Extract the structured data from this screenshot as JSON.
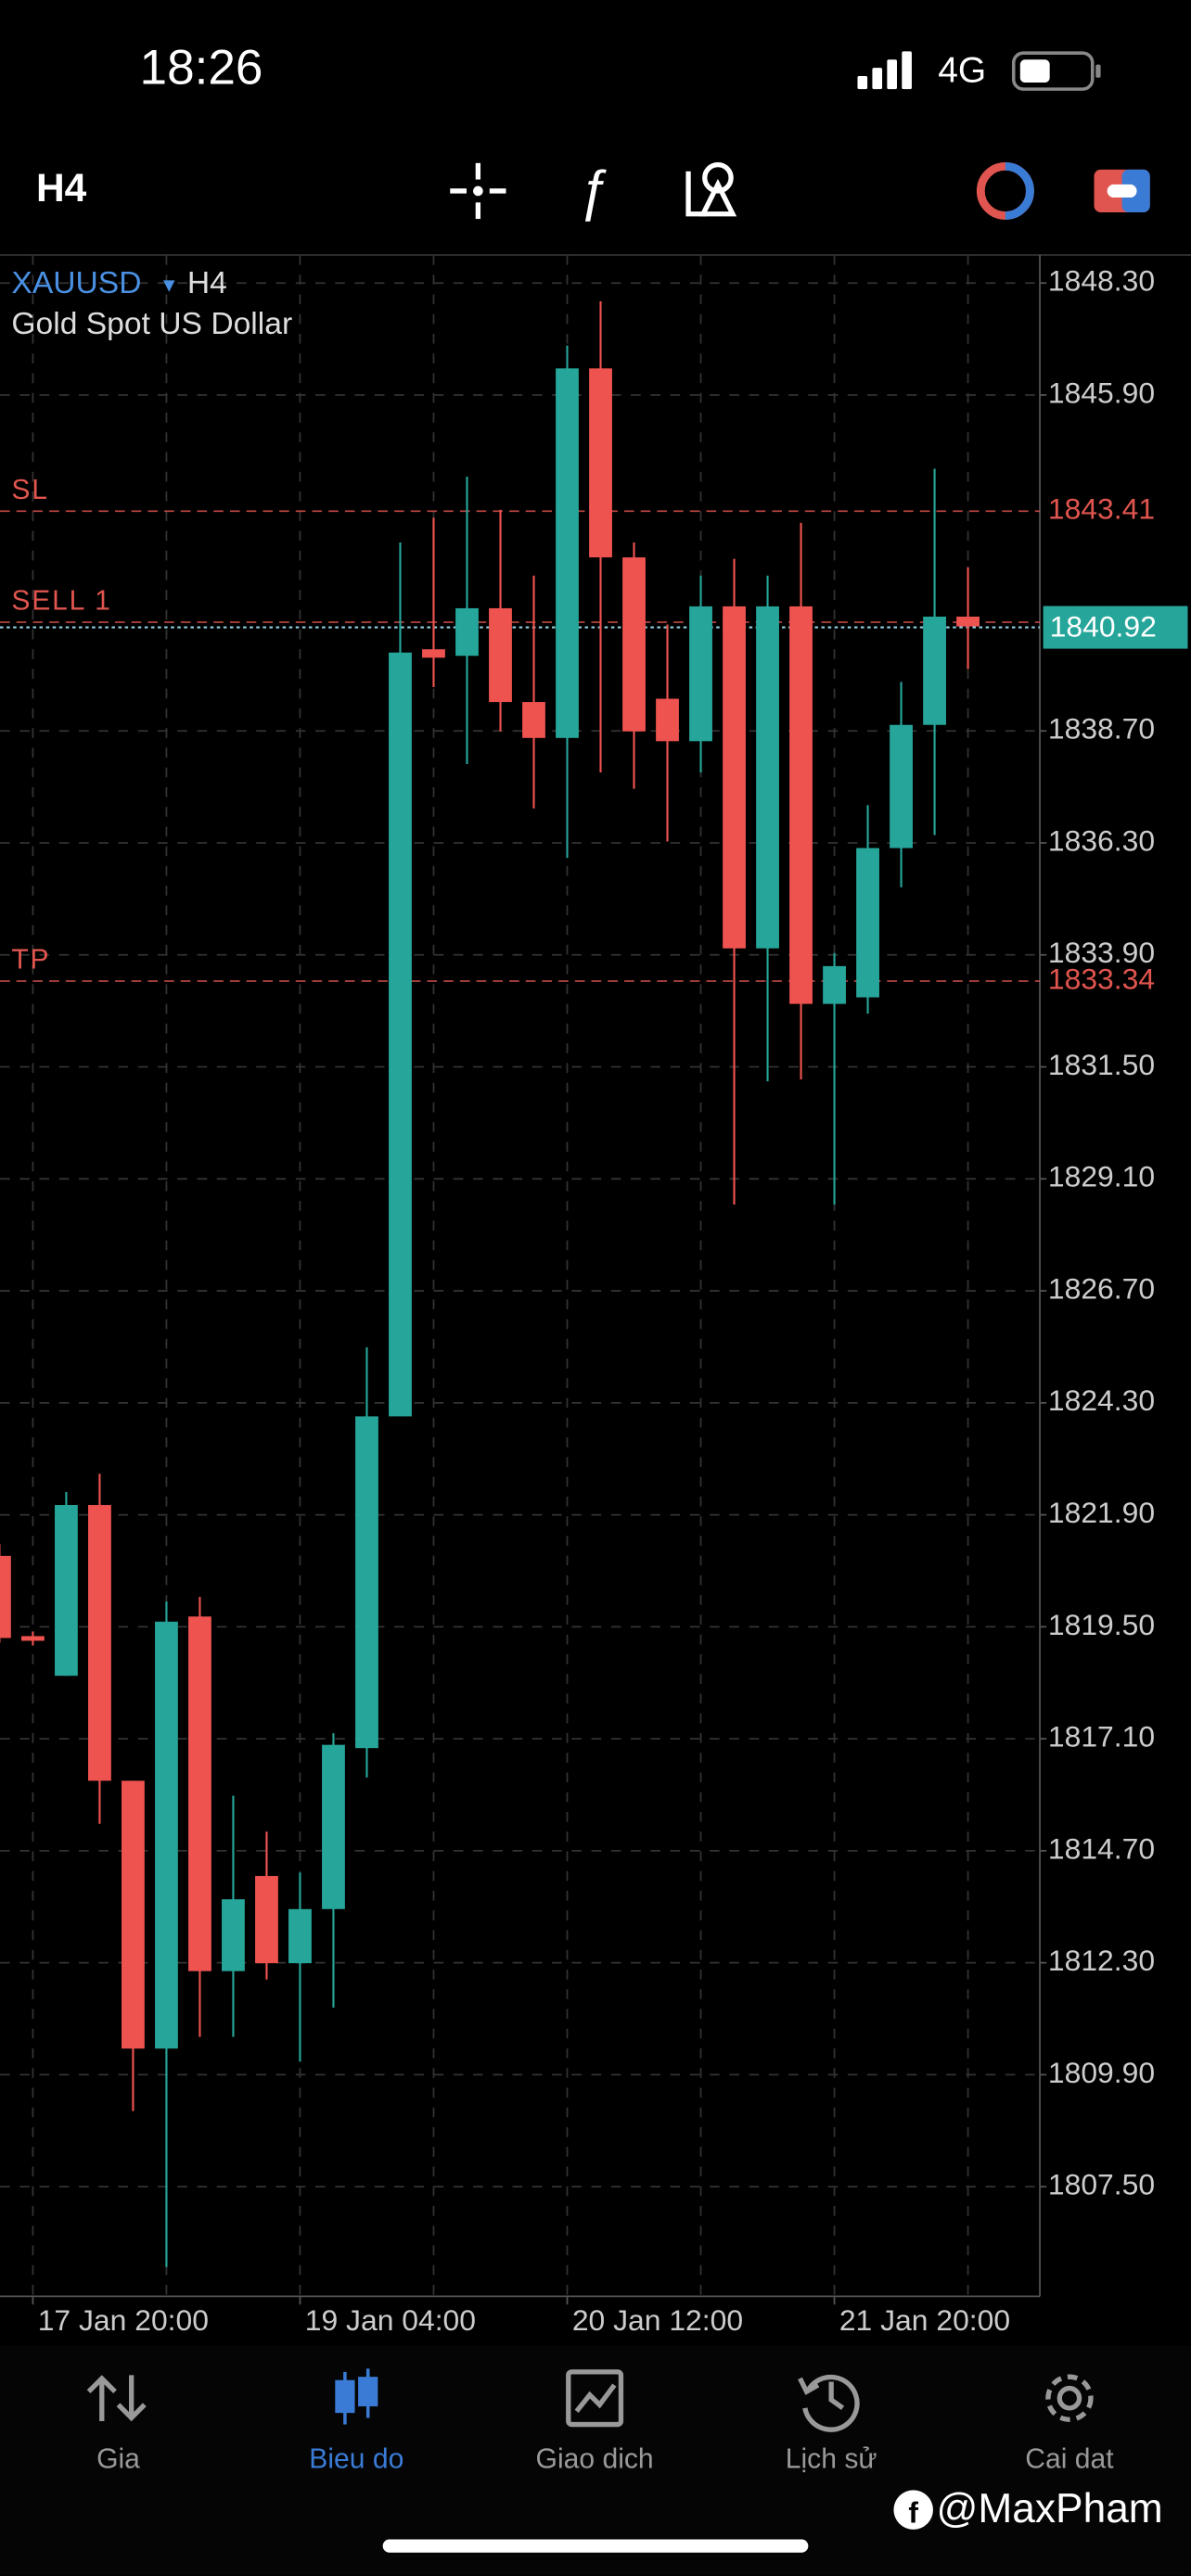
{
  "status_bar": {
    "time": "18:26",
    "network": "4G"
  },
  "toolbar": {
    "timeframe": "H4"
  },
  "chart_data": {
    "type": "candlestick",
    "symbol": "XAUUSD",
    "timeframe": "H4",
    "description": "Gold Spot US Dollar",
    "categories": [
      null,
      "17 Jan 20:00",
      null,
      null,
      null,
      null,
      null,
      null,
      null,
      "19 Jan 04:00",
      null,
      null,
      null,
      null,
      null,
      null,
      null,
      "20 Jan 12:00",
      null,
      null,
      null,
      null,
      null,
      null,
      null,
      "21 Jan 20:00",
      null,
      null,
      null,
      null
    ],
    "open": [
      1821.02,
      1819.3,
      1818.45,
      1822.11,
      1816.2,
      1810.46,
      1819.72,
      1812.12,
      1814.16,
      1812.29,
      1813.45,
      1816.9,
      1824.01,
      1840.45,
      1840.31,
      1841.33,
      1839.32,
      1838.55,
      1846.47,
      1842.42,
      1839.39,
      1838.48,
      1841.37,
      1834.04,
      1841.37,
      1832.85,
      1832.99,
      1836.19,
      1838.83,
      1841.15
    ],
    "high": [
      1821.27,
      1819.4,
      1822.39,
      1822.78,
      1816.2,
      1820.04,
      1820.14,
      1815.88,
      1815.11,
      1814.23,
      1817.22,
      1825.49,
      1842.74,
      1843.27,
      1844.15,
      1843.44,
      1842.03,
      1846.96,
      1847.91,
      1842.74,
      1840.98,
      1842.03,
      1842.39,
      1842.03,
      1843.16,
      1833.94,
      1837.11,
      1839.75,
      1844.32,
      1842.21
    ],
    "low": [
      1819.16,
      1819.1,
      1818.45,
      1815.28,
      1809.12,
      1805.78,
      1810.71,
      1810.71,
      1811.94,
      1810.18,
      1811.34,
      1816.27,
      1824.01,
      1839.64,
      1837.99,
      1838.69,
      1837.04,
      1835.98,
      1837.81,
      1837.46,
      1836.33,
      1837.81,
      1828.55,
      1831.19,
      1831.23,
      1828.55,
      1832.64,
      1835.35,
      1836.47,
      1840.03
    ],
    "close": [
      1819.26,
      1819.2,
      1822.11,
      1816.2,
      1810.46,
      1819.61,
      1812.12,
      1813.66,
      1812.29,
      1813.45,
      1816.97,
      1824.01,
      1840.38,
      1840.27,
      1841.33,
      1839.32,
      1838.55,
      1846.47,
      1842.42,
      1838.69,
      1838.48,
      1841.37,
      1834.04,
      1841.37,
      1832.85,
      1833.66,
      1836.19,
      1838.83,
      1841.15,
      1840.94
    ],
    "up_color": "#26a69a",
    "down_color": "#ef5350",
    "ylim": [
      1805.15,
      1848.9
    ],
    "yticks": [
      {
        "value": 1848.3,
        "label": "1848.30"
      },
      {
        "value": 1845.9,
        "label": "1845.90"
      },
      {
        "value": 1838.7,
        "label": "1838.70"
      },
      {
        "value": 1836.3,
        "label": "1836.30"
      },
      {
        "value": 1833.9,
        "label": "1833.90"
      },
      {
        "value": 1831.5,
        "label": "1831.50"
      },
      {
        "value": 1829.1,
        "label": "1829.10"
      },
      {
        "value": 1826.7,
        "label": "1826.70"
      },
      {
        "value": 1824.3,
        "label": "1824.30"
      },
      {
        "value": 1821.9,
        "label": "1821.90"
      },
      {
        "value": 1819.5,
        "label": "1819.50"
      },
      {
        "value": 1817.1,
        "label": "1817.10"
      },
      {
        "value": 1814.7,
        "label": "1814.70"
      },
      {
        "value": 1812.3,
        "label": "1812.30"
      },
      {
        "value": 1809.9,
        "label": "1809.90"
      },
      {
        "value": 1807.5,
        "label": "1807.50"
      }
    ],
    "grid": true,
    "levels": [
      {
        "name": "SL",
        "value": 1843.41,
        "color": "#e0554f",
        "price_tag": true
      },
      {
        "name": "SELL 1",
        "value": 1841.03,
        "color": "#e0554f",
        "price_tag": false
      },
      {
        "name": "TP",
        "value": 1833.34,
        "color": "#e0554f",
        "price_tag": true
      }
    ],
    "last_price": {
      "value": 1840.92,
      "color": "#26a69a"
    }
  },
  "nav": {
    "items": [
      "Gia",
      "Bieu do",
      "Giao dich",
      "Lịch sử",
      "Cai dat"
    ],
    "active": 1
  },
  "watermark": "@MaxPham"
}
